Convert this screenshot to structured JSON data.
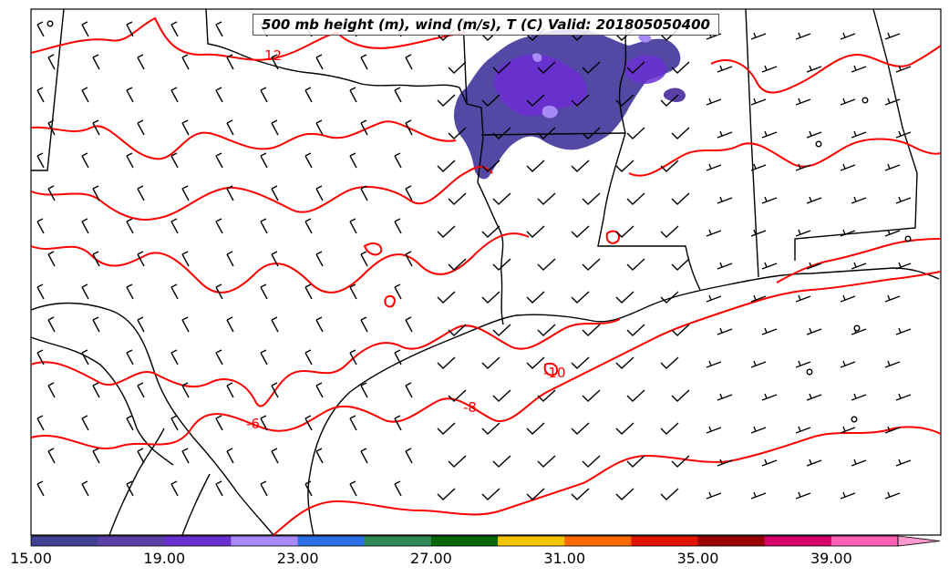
{
  "title": "500 mb height (m), wind (m/s), T (C) Valid: 201805050400",
  "contour_labels": [
    "12",
    "-6",
    "-8",
    "-10"
  ],
  "colorbar": {
    "tick_labels": [
      "15.00",
      "19.00",
      "23.00",
      "27.00",
      "31.00",
      "35.00",
      "39.00"
    ],
    "colors": [
      "#3f3f93",
      "#5a3fa6",
      "#6a2fd1",
      "#a78af7",
      "#2c6fe6",
      "#2e8b57",
      "#056605",
      "#f2c500",
      "#ff6a00",
      "#e01400",
      "#990000",
      "#d6006a",
      "#ff5fb4"
    ],
    "extend_color": "#ff9ad0"
  },
  "colors": {
    "temperature_contour": "#ff0000",
    "boundaries": "#000000",
    "wind_barbs": "#000000",
    "shaded_region": "#5a3fb0"
  }
}
